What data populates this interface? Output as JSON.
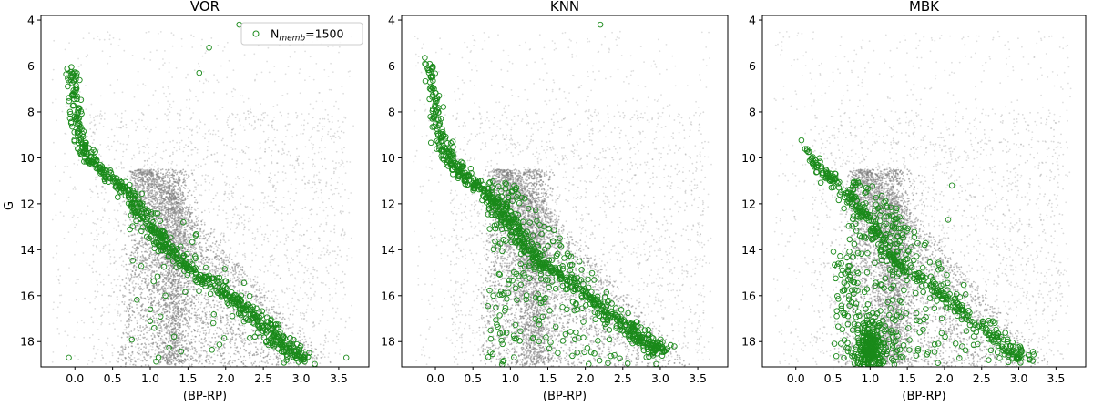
{
  "chart_data": [
    {
      "type": "scatter",
      "title": "VOR",
      "xlabel": "(BP-RP)",
      "ylabel": "G",
      "xlim": [
        -0.45,
        3.9
      ],
      "ylim": [
        19.1,
        3.8
      ],
      "y_inverted": true,
      "xticks": [
        "0.0",
        "0.5",
        "1.0",
        "1.5",
        "2.0",
        "2.5",
        "3.0",
        "3.5"
      ],
      "yticks": [
        "4",
        "6",
        "8",
        "10",
        "12",
        "14",
        "16",
        "18"
      ],
      "legend": {
        "text": "N",
        "subscript": "memb",
        "suffix": "=1500",
        "placement": "top-right"
      },
      "members": {
        "count": 1500,
        "color": "#1a8a1a",
        "main_sequence": [
          [
            -0.05,
            6.0
          ],
          [
            0.0,
            7.5
          ],
          [
            0.05,
            8.8
          ],
          [
            0.15,
            9.8
          ],
          [
            0.3,
            10.4
          ],
          [
            0.5,
            10.9
          ],
          [
            0.7,
            11.5
          ],
          [
            0.9,
            12.4
          ],
          [
            1.1,
            13.4
          ],
          [
            1.3,
            14.2
          ],
          [
            1.6,
            15.0
          ],
          [
            2.0,
            15.9
          ],
          [
            2.3,
            16.7
          ],
          [
            2.6,
            17.6
          ],
          [
            2.8,
            18.2
          ],
          [
            3.1,
            18.8
          ]
        ],
        "outliers": [
          [
            2.18,
            4.2
          ],
          [
            1.78,
            5.2
          ],
          [
            1.65,
            6.3
          ],
          [
            -0.08,
            18.7
          ],
          [
            3.6,
            18.7
          ],
          [
            1.0,
            16.6
          ],
          [
            1.2,
            16.0
          ],
          [
            1.6,
            14.8
          ]
        ],
        "field_count": 60
      },
      "background": {
        "color": "#808080",
        "description_none": ""
      }
    },
    {
      "type": "scatter",
      "title": "KNN",
      "xlabel": "(BP-RP)",
      "ylabel": "",
      "xlim": [
        -0.45,
        3.9
      ],
      "ylim": [
        19.1,
        3.8
      ],
      "y_inverted": true,
      "xticks": [
        "0.0",
        "0.5",
        "1.0",
        "1.5",
        "2.0",
        "2.5",
        "3.0",
        "3.5"
      ],
      "yticks": [
        "4",
        "6",
        "8",
        "10",
        "12",
        "14",
        "16",
        "18"
      ],
      "members": {
        "count": 1500,
        "color": "#1a8a1a",
        "main_sequence": [
          [
            -0.1,
            5.8
          ],
          [
            0.0,
            7.6
          ],
          [
            0.05,
            8.9
          ],
          [
            0.15,
            9.9
          ],
          [
            0.3,
            10.5
          ],
          [
            0.5,
            11.0
          ],
          [
            0.7,
            11.6
          ],
          [
            0.9,
            12.4
          ],
          [
            1.1,
            13.3
          ],
          [
            1.3,
            14.2
          ],
          [
            1.6,
            15.0
          ],
          [
            2.0,
            15.9
          ],
          [
            2.3,
            16.7
          ],
          [
            2.6,
            17.5
          ],
          [
            2.8,
            18.0
          ],
          [
            3.05,
            18.5
          ]
        ],
        "outliers": [
          [
            2.2,
            4.2
          ]
        ],
        "field_count": 260
      },
      "background": {
        "color": "#808080"
      }
    },
    {
      "type": "scatter",
      "title": "MBK",
      "xlabel": "(BP-RP)",
      "ylabel": "",
      "xlim": [
        -0.45,
        3.9
      ],
      "ylim": [
        19.1,
        3.8
      ],
      "y_inverted": true,
      "xticks": [
        "0.0",
        "0.5",
        "1.0",
        "1.5",
        "2.0",
        "2.5",
        "3.0",
        "3.5"
      ],
      "yticks": [
        "4",
        "6",
        "8",
        "10",
        "12",
        "14",
        "16",
        "18"
      ],
      "members": {
        "count": 1500,
        "color": "#1a8a1a",
        "main_sequence": [
          [
            0.1,
            9.4
          ],
          [
            0.3,
            10.4
          ],
          [
            0.5,
            11.0
          ],
          [
            0.7,
            11.7
          ],
          [
            0.9,
            12.5
          ],
          [
            1.1,
            13.4
          ],
          [
            1.3,
            14.3
          ],
          [
            1.6,
            15.1
          ],
          [
            2.0,
            16.0
          ],
          [
            2.3,
            16.8
          ],
          [
            2.6,
            17.6
          ],
          [
            2.9,
            18.3
          ],
          [
            3.05,
            18.8
          ]
        ],
        "outliers": [
          [
            2.1,
            11.2
          ],
          [
            2.05,
            12.7
          ]
        ],
        "field_count": 200,
        "clump": {
          "x": 1.0,
          "y": 18.2,
          "n": 260
        }
      },
      "background": {
        "color": "#808080"
      }
    }
  ]
}
